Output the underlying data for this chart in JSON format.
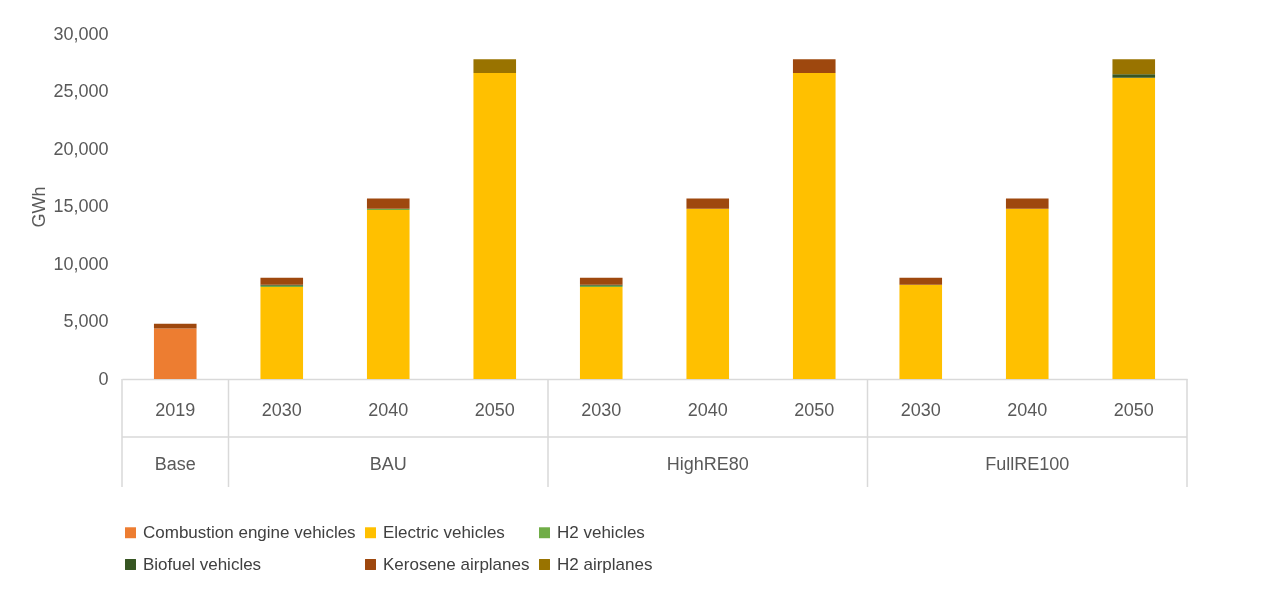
{
  "chart_data": {
    "type": "bar",
    "stacked": true,
    "ylabel": "GWh",
    "categories": [
      "2019",
      "2030",
      "2040",
      "2050",
      "2030",
      "2040",
      "2050",
      "2030",
      "2040",
      "2050"
    ],
    "annotations": [
      "Base",
      "BAU",
      "HighRE80",
      "FullRE100"
    ],
    "series": [
      {
        "name": "Combustion engine vehicles",
        "color": "#ed7d31",
        "values": [
          4400,
          null,
          null,
          null,
          null,
          null,
          null,
          null,
          null,
          null
        ]
      },
      {
        "name": "Electric vehicles",
        "color": "#ffc000",
        "values": [
          null,
          8000,
          14700,
          26600,
          8000,
          14800,
          26600,
          8200,
          14800,
          26200
        ]
      },
      {
        "name": "H2 vehicles",
        "color": "#70ad47",
        "values": [
          null,
          100,
          100,
          null,
          100,
          null,
          null,
          null,
          null,
          null
        ]
      },
      {
        "name": "Biofuel vehicles",
        "color": "#375623",
        "values": [
          null,
          100,
          null,
          null,
          100,
          null,
          null,
          null,
          null,
          300
        ]
      },
      {
        "name": "Kerosene airplanes",
        "color": "#9e480e",
        "values": [
          400,
          600,
          900,
          null,
          600,
          900,
          1200,
          600,
          900,
          null
        ]
      },
      {
        "name": "H2 airplanes",
        "color": "#997300",
        "values": [
          null,
          null,
          null,
          1200,
          null,
          null,
          null,
          null,
          null,
          1300
        ]
      }
    ],
    "ylim": [
      0,
      30000
    ],
    "yticks": [
      0,
      {
        "value": 5000,
        "label": "5,000"
      },
      {
        "value": 10000,
        "label": "10,000"
      },
      {
        "value": 15000,
        "label": "15,000"
      },
      {
        "value": 20000,
        "label": "20,000"
      },
      {
        "value": 25000,
        "label": "25,000"
      },
      {
        "value": 30000,
        "label": "30,000"
      }
    ],
    "grid": false,
    "legend": "bottom"
  }
}
